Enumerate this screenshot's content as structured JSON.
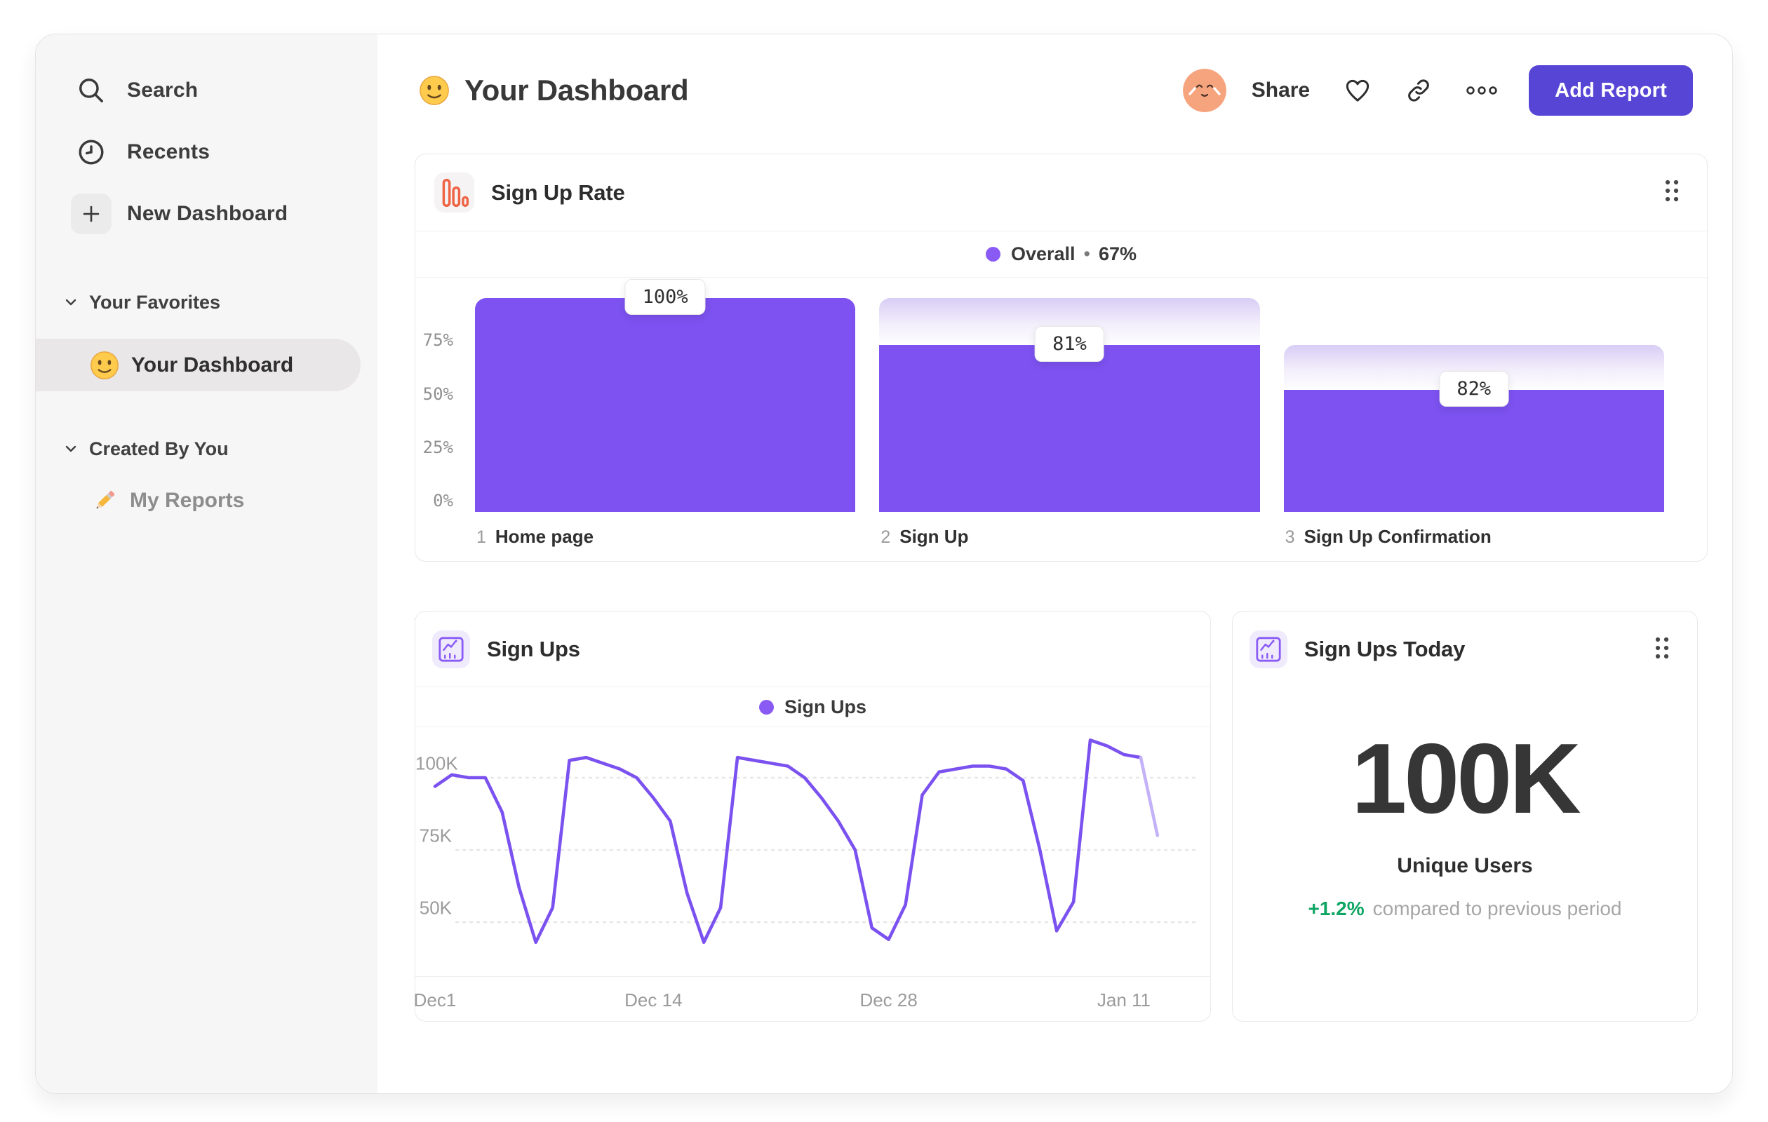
{
  "header": {
    "title": "Your Dashboard",
    "share_label": "Share",
    "add_report_label": "Add Report"
  },
  "sidebar": {
    "nav": [
      {
        "label": "Search",
        "icon": "search-icon"
      },
      {
        "label": "Recents",
        "icon": "clock-icon"
      },
      {
        "label": "New Dashboard",
        "icon": "plus-icon"
      }
    ],
    "sections": [
      {
        "label": "Your Favorites",
        "items": [
          {
            "label": "Your Dashboard",
            "icon": "smiley-emoji-icon",
            "selected": true
          }
        ]
      },
      {
        "label": "Created By You",
        "items": [
          {
            "label": "My Reports",
            "icon": "pencil-emoji-icon",
            "selected": false
          }
        ]
      }
    ]
  },
  "cards": {
    "funnel": {
      "title": "Sign Up Rate",
      "legend": {
        "label": "Overall",
        "separator": "•",
        "value": "67%"
      }
    },
    "line": {
      "title": "Sign Ups",
      "legend_label": "Sign Ups"
    },
    "stat": {
      "title": "Sign Ups Today",
      "value": "100K",
      "sublabel": "Unique Users",
      "delta": "+1.2%",
      "delta_description": "compared to previous period"
    }
  },
  "colors": {
    "accent_bar": "#7d52f1",
    "accent_line": "#7b51f0",
    "line_fade": "#c4b2f8",
    "legend_dot": "#8a5af4",
    "button_purple": "#5746d6",
    "icon_orange": "#ef6445",
    "icon_purple": "#8a5cf5",
    "delta_green": "#0fa563",
    "ghost_gradient_top": "#d8cdf5"
  },
  "icons": {
    "header": [
      "avatar",
      "heart-icon",
      "link-icon",
      "more-dots-icon"
    ],
    "cards": [
      "bar-chart-icon",
      "line-chart-icon",
      "drag-handle-icon"
    ]
  },
  "chart_data": [
    {
      "type": "bar",
      "subtype": "funnel",
      "title": "Sign Up Rate",
      "legend": {
        "label": "Overall",
        "value": "67%"
      },
      "step_numbers": [
        "1",
        "2",
        "3"
      ],
      "categories": [
        "Home page",
        "Sign Up",
        "Sign Up Confirmation"
      ],
      "values_pct": [
        100,
        81,
        82
      ],
      "value_labels": [
        "100%",
        "81%",
        "82%"
      ],
      "absolute_pct": [
        100,
        81,
        66
      ],
      "ytick_labels": [
        "75%",
        "50%",
        "25%",
        "0%"
      ],
      "ytick_pct": [
        75,
        50,
        25,
        0
      ],
      "ylim": [
        0,
        100
      ],
      "legend_position": "top-center",
      "render_hint": {
        "solid_pct": [
          100,
          78,
          57
        ],
        "ghost_from_pct": [
          100,
          100,
          78
        ]
      }
    },
    {
      "type": "line",
      "title": "Sign Ups",
      "legend": "Sign Ups",
      "unit": "K",
      "x_start_label": "Dec1",
      "x_tick_labels": [
        "Dec1",
        "Dec 14",
        "Dec 28",
        "Jan 11"
      ],
      "x_tick_days": [
        0,
        13,
        27,
        41
      ],
      "values_k": [
        97,
        101,
        100,
        100,
        88,
        62,
        43,
        55,
        106,
        107,
        105,
        103,
        100,
        93,
        85,
        60,
        43,
        55,
        107,
        106,
        105,
        104,
        100,
        93,
        85,
        75,
        48,
        44,
        56,
        94,
        102,
        103,
        104,
        104,
        103,
        99,
        75,
        47,
        57,
        113,
        111,
        108,
        107,
        80
      ],
      "ytick_labels": [
        "100K",
        "75K",
        "50K"
      ],
      "ytick_k": [
        100,
        75,
        50
      ],
      "ylim_k": [
        38,
        118
      ],
      "grid": "dashed-horizontal",
      "fade_from_index": 42,
      "legend_position": "top-center"
    }
  ]
}
